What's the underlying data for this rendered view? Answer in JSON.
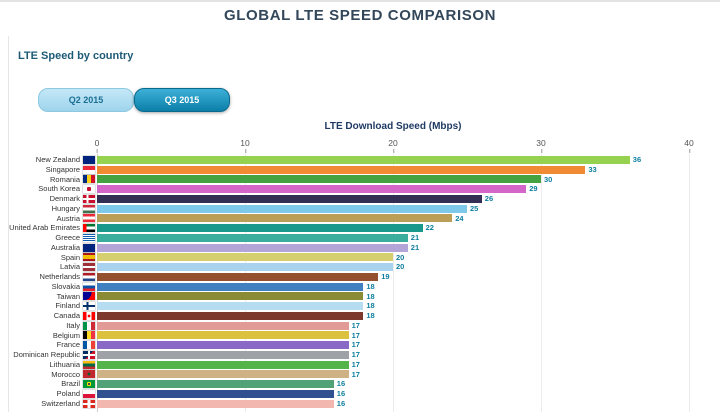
{
  "page": {
    "title": "GLOBAL LTE SPEED COMPARISON",
    "subtitle": "LTE Speed by country"
  },
  "tabs": [
    {
      "label": "Q2 2015",
      "active": false
    },
    {
      "label": "Q3 2015",
      "active": true
    }
  ],
  "colors": {
    "title": "#33475b",
    "subtitle": "#1d5a77",
    "value_label": "#0e7e9e",
    "tab_active_bg": "#0c7fa9",
    "tab_inactive_bg": "#9ed4ec"
  },
  "chart_data": {
    "type": "bar",
    "orientation": "horizontal",
    "title": "LTE Download Speed (Mbps)",
    "xlabel": "LTE Download Speed (Mbps)",
    "ylabel": "",
    "xlim": [
      0,
      40
    ],
    "xticks": [
      0,
      10,
      20,
      30,
      40
    ],
    "grid": true,
    "legend": false,
    "categories": [
      "New Zealand",
      "Singapore",
      "Romania",
      "South Korea",
      "Denmark",
      "Hungary",
      "Austria",
      "United Arab Emirates",
      "Greece",
      "Australia",
      "Spain",
      "Latvia",
      "Netherlands",
      "Slovakia",
      "Taiwan",
      "Finland",
      "Canada",
      "Italy",
      "Belgium",
      "France",
      "Dominican Republic",
      "Lithuania",
      "Morocco",
      "Brazil",
      "Poland",
      "Switzerland"
    ],
    "values": [
      36,
      33,
      30,
      29,
      26,
      25,
      24,
      22,
      21,
      21,
      20,
      20,
      19,
      18,
      18,
      18,
      18,
      17,
      17,
      17,
      17,
      17,
      17,
      16,
      16,
      16
    ],
    "rows": [
      {
        "country": "New Zealand",
        "value": 36,
        "color": "#95d24f",
        "flag_base": "#00247d",
        "flag_img": ""
      },
      {
        "country": "Singapore",
        "value": 33,
        "color": "#f08b33",
        "flag_base": "#ffffff",
        "flag_img": "linear-gradient(to bottom, #ed2939 50%, transparent 50%)"
      },
      {
        "country": "Romania",
        "value": 30,
        "color": "#44a340",
        "flag_base": "#ce1126",
        "flag_img": "linear-gradient(to right, #002b7f 33%, #fcd116 33%, #fcd116 66%, transparent 66%)"
      },
      {
        "country": "South Korea",
        "value": 29,
        "color": "#d466c9",
        "flag_base": "#ffffff",
        "flag_img": "radial-gradient(circle at 50% 50%, #c60c30 0 30%, transparent 31%)"
      },
      {
        "country": "Denmark",
        "value": 26,
        "color": "#332f54",
        "flag_base": "#c8102e",
        "flag_img": "linear-gradient(to right, transparent 30%, #ffffff 30%, #ffffff 46%, transparent 46%), linear-gradient(to bottom, transparent 38%, #ffffff 38%, #ffffff 62%, transparent 62%)"
      },
      {
        "country": "Hungary",
        "value": 25,
        "color": "#7ec8ea",
        "flag_base": "#436f4d",
        "flag_img": "linear-gradient(to bottom, #cd2a3e 33%, #ffffff 33%, #ffffff 66%, transparent 66%)"
      },
      {
        "country": "Austria",
        "value": 24,
        "color": "#bc9f56",
        "flag_base": "#ed2939",
        "flag_img": "linear-gradient(to bottom, transparent 33%, #ffffff 33%, #ffffff 66%, transparent 66%)"
      },
      {
        "country": "United Arab Emirates",
        "value": 22,
        "color": "#1a988c",
        "flag_base": "#000000",
        "flag_img": "linear-gradient(to right, #ff0000 28%, transparent 28%), linear-gradient(to bottom, #00732f 33%, #ffffff 33%, #ffffff 66%, transparent 66%)"
      },
      {
        "country": "Greece",
        "value": 21,
        "color": "#3bad9c",
        "flag_base": "#0d5eaf",
        "flag_img": "repeating-linear-gradient(to bottom, #0d5eaf 0, #0d5eaf 1px, #ffffff 1px, #ffffff 2px)"
      },
      {
        "country": "Australia",
        "value": 21,
        "color": "#b3a5d8",
        "flag_base": "#00247d",
        "flag_img": ""
      },
      {
        "country": "Spain",
        "value": 20,
        "color": "#d6cf70",
        "flag_base": "#f1bf00",
        "flag_img": "linear-gradient(to bottom, #aa151b 25%, transparent 25%, transparent 75%, #aa151b 75%)"
      },
      {
        "country": "Latvia",
        "value": 20,
        "color": "#a8d2ee",
        "flag_base": "#9e3039",
        "flag_img": "linear-gradient(to bottom, transparent 40%, #ffffff 40%, #ffffff 60%, transparent 60%)"
      },
      {
        "country": "Netherlands",
        "value": 19,
        "color": "#94502f",
        "flag_base": "#21468b",
        "flag_img": "linear-gradient(to bottom, #ae1c28 33%, #ffffff 33%, #ffffff 66%, transparent 66%)"
      },
      {
        "country": "Slovakia",
        "value": 18,
        "color": "#4180c0",
        "flag_base": "#ee1c25",
        "flag_img": "linear-gradient(to bottom, #ffffff 33%, #0b4ea2 33%, #0b4ea2 66%, transparent 66%)"
      },
      {
        "country": "Taiwan",
        "value": 18,
        "color": "#8b8b35",
        "flag_base": "#fe0000",
        "flag_img": "radial-gradient(circle at 0 0, #000095 0 60%, transparent 60%)"
      },
      {
        "country": "Finland",
        "value": 18,
        "color": "#b6dcf2",
        "flag_base": "#ffffff",
        "flag_img": "linear-gradient(to right, transparent 28%, #002f6c 28%, #002f6c 46%, transparent 46%), linear-gradient(to bottom, transparent 38%, #002f6c 38%, #002f6c 62%, transparent 62%)"
      },
      {
        "country": "Canada",
        "value": 18,
        "color": "#7d3a2c",
        "flag_base": "#ffffff",
        "flag_img": "radial-gradient(circle at 50% 50%, #ff0000 0 18%, transparent 19%), linear-gradient(to right, #ff0000 28%, transparent 28%, transparent 72%, #ff0000 72%)"
      },
      {
        "country": "Italy",
        "value": 17,
        "color": "#e29a96",
        "flag_base": "#ce2b37",
        "flag_img": "linear-gradient(to right, #009246 33%, #ffffff 33%, #ffffff 66%, transparent 66%)"
      },
      {
        "country": "Belgium",
        "value": 17,
        "color": "#dcc13f",
        "flag_base": "#ef3340",
        "flag_img": "linear-gradient(to right, #000000 33%, #fdda24 33%, #fdda24 66%, transparent 66%)"
      },
      {
        "country": "France",
        "value": 17,
        "color": "#8a69c6",
        "flag_base": "#ef4135",
        "flag_img": "linear-gradient(to right, #0055a4 33%, #ffffff 33%, #ffffff 66%, transparent 66%)"
      },
      {
        "country": "Dominican Republic",
        "value": 17,
        "color": "#9ea2a6",
        "flag_base": "#ce1126",
        "flag_img": "linear-gradient(to right, transparent 40%, #ffffff 40%, #ffffff 60%, transparent 60%), linear-gradient(to bottom, transparent 40%, #ffffff 40%, #ffffff 60%, transparent 60%), linear-gradient(135deg, #002d62 50%, transparent 50%)"
      },
      {
        "country": "Lithuania",
        "value": 17,
        "color": "#54b449",
        "flag_base": "#c1272d",
        "flag_img": "linear-gradient(to bottom, #fdb913 33%, #006a44 33%, #006a44 66%, transparent 66%)"
      },
      {
        "country": "Morocco",
        "value": 17,
        "color": "#ceb184",
        "flag_base": "#c1272d",
        "flag_img": "radial-gradient(circle at 50% 50%, #006233 0 18%, transparent 19%)"
      },
      {
        "country": "Brazil",
        "value": 16,
        "color": "#51a276",
        "flag_base": "#009739",
        "flag_img": "radial-gradient(circle at 50% 50%, #012169 0 12%, #ffdf00 13%, #ffdf00 30%, transparent 31%)"
      },
      {
        "country": "Poland",
        "value": 16,
        "color": "#31508f",
        "flag_base": "#dc143c",
        "flag_img": "linear-gradient(to bottom, #ffffff 50%, transparent 50%)"
      },
      {
        "country": "Switzerland",
        "value": 16,
        "color": "#f2b8af",
        "flag_base": "#da291c",
        "flag_img": "linear-gradient(to right, transparent 38%, #ffffff 38%, #ffffff 62%, transparent 62%), linear-gradient(to bottom, transparent 38%, #ffffff 38%, #ffffff 62%, transparent 62%)"
      }
    ]
  }
}
